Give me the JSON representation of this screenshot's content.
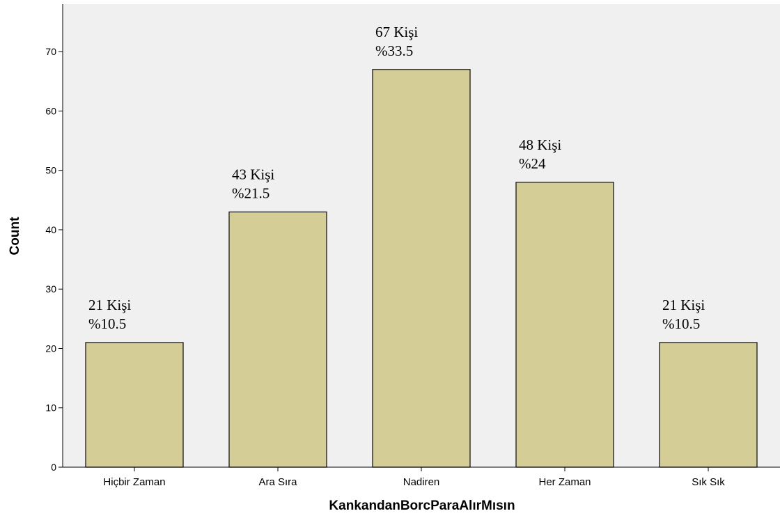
{
  "chart_data": {
    "type": "bar",
    "title": "",
    "xlabel": "KankandanBorcParaAlırMısın",
    "ylabel": "Count",
    "categories": [
      "Hiçbir Zaman",
      "Ara Sıra",
      "Nadiren",
      "Her Zaman",
      "Sık Sık"
    ],
    "values": [
      21,
      43,
      67,
      48,
      21
    ],
    "annotations": [
      [
        "21 Kişi",
        "%10.5"
      ],
      [
        "43 Kişi",
        "%21.5"
      ],
      [
        "67 Kişi",
        "%33.5"
      ],
      [
        "48 Kişi",
        "%24"
      ],
      [
        "21 Kişi",
        "%10.5"
      ]
    ],
    "ylim": [
      0,
      78
    ],
    "yticks": [
      0,
      10,
      20,
      30,
      40,
      50,
      60,
      70
    ],
    "grid": false,
    "colors": {
      "bar_fill": "#d4cd96",
      "plot_background": "#f0f0f0",
      "page_background": "#ffffff"
    }
  }
}
